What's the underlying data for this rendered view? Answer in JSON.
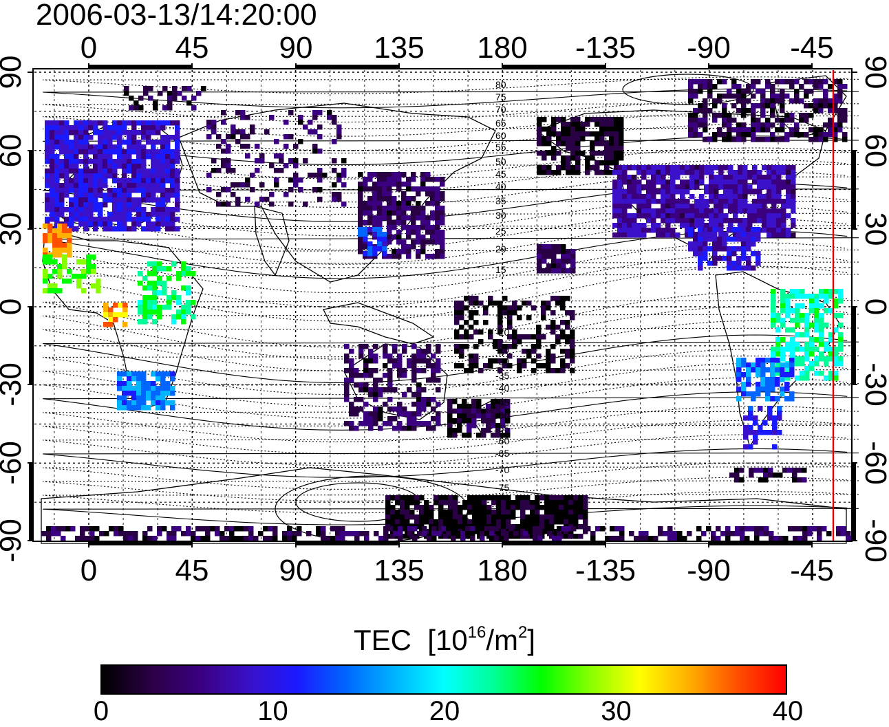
{
  "timestamp": "2006-03-13/14:20:00",
  "map": {
    "lon_ticks": [
      "0",
      "45",
      "90",
      "135",
      "180",
      "-135",
      "-90",
      "-45"
    ],
    "lat_ticks": [
      "90",
      "60",
      "30",
      "0",
      "-30",
      "-60",
      "-90"
    ],
    "contour_labels": [
      "80",
      "75",
      "70",
      "65",
      "60",
      "55",
      "50",
      "45",
      "40",
      "35",
      "30",
      "25",
      "20",
      "15",
      "-15",
      "-20",
      "-25",
      "-30",
      "-35",
      "-40",
      "-45",
      "-50",
      "-55",
      "-60",
      "-65",
      "-70",
      "-75"
    ],
    "terminator_color": "#e00000"
  },
  "colorbar": {
    "title": "TEC",
    "unit_base": "10",
    "unit_exp": "16",
    "unit_mid": "/m",
    "unit_exp2": "2",
    "ticks": [
      "0",
      "10",
      "20",
      "30",
      "40"
    ],
    "colors": [
      "#000000",
      "#2a0045",
      "#3a0080",
      "#3a10c8",
      "#1a1aff",
      "#0066ff",
      "#00b4ff",
      "#00ffff",
      "#00ff99",
      "#00ff00",
      "#88ff00",
      "#ffff00",
      "#ffb000",
      "#ff5000",
      "#ff0000"
    ]
  },
  "chart_data": {
    "type": "heatmap",
    "title": "2006-03-13/14:20:00",
    "xlabel": "",
    "ylabel": "",
    "x_ticks": [
      "0",
      "45",
      "90",
      "135",
      "180",
      "-135",
      "-90",
      "-45"
    ],
    "y_ticks": [
      "90",
      "60",
      "30",
      "0",
      "-30",
      "-60",
      "-90"
    ],
    "xlim": [
      -25,
      330
    ],
    "ylim": [
      -90,
      90
    ],
    "colorbar_label": "TEC [10^16/m^2]",
    "colorbar_range": [
      0,
      40
    ],
    "terminator_longitude": -37,
    "regions": [
      {
        "lon": [
          -20,
          40
        ],
        "lat": [
          35,
          70
        ],
        "tec": 9
      },
      {
        "lon": [
          -18,
          -5
        ],
        "lat": [
          15,
          35
        ],
        "tec": 38
      },
      {
        "lon": [
          10,
          25
        ],
        "lat": [
          -5,
          5
        ],
        "tec": 34
      },
      {
        "lon": [
          15,
          40
        ],
        "lat": [
          -35,
          -20
        ],
        "tec": 15
      },
      {
        "lon": [
          120,
          150
        ],
        "lat": [
          20,
          55
        ],
        "tec": 4
      },
      {
        "lon": [
          235,
          290
        ],
        "lat": [
          25,
          55
        ],
        "tec": 6
      },
      {
        "lon": [
          300,
          330
        ],
        "lat": [
          -30,
          5
        ],
        "tec": 22
      },
      {
        "lon": [
          110,
          200
        ],
        "lat": [
          -85,
          -65
        ],
        "tec": 1
      }
    ]
  }
}
